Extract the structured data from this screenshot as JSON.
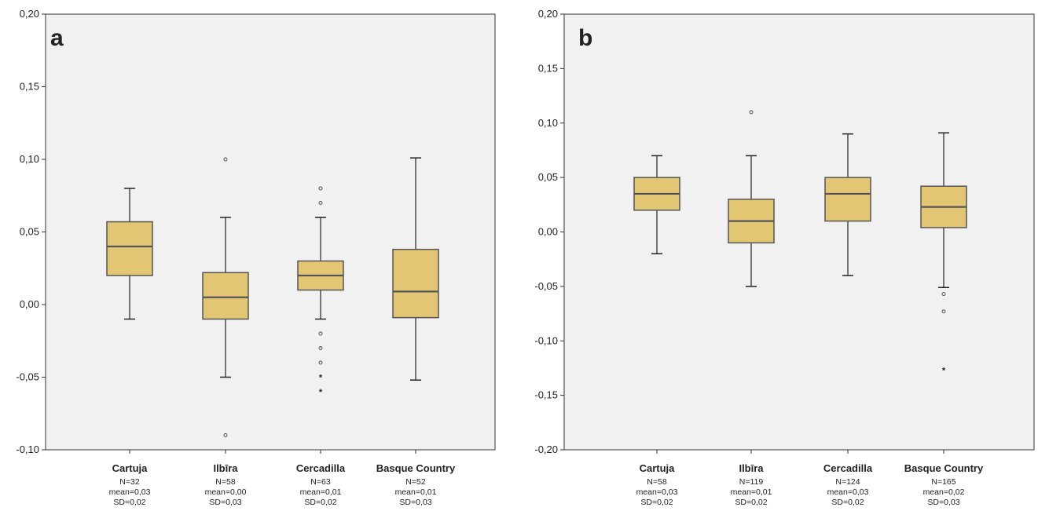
{
  "chart_data": [
    {
      "type": "boxplot",
      "panel_label": "a",
      "ylim": [
        -0.1,
        0.2
      ],
      "yticks": [
        {
          "value": -0.1,
          "label": "-0,10"
        },
        {
          "value": -0.05,
          "label": "-0,05"
        },
        {
          "value": 0.0,
          "label": "0,00"
        },
        {
          "value": 0.05,
          "label": "0,05"
        },
        {
          "value": 0.1,
          "label": "0,10"
        },
        {
          "value": 0.15,
          "label": "0,15"
        },
        {
          "value": 0.2,
          "label": "0,20"
        }
      ],
      "box_color": "#e2c674",
      "background_color": "#f1f1f1",
      "boxes": [
        {
          "category": "Cartuja",
          "n_label": "N=32",
          "mean_label": "mean=0,03",
          "sd_label": "SD=0,02",
          "whisker_low": -0.01,
          "q1": 0.02,
          "median": 0.04,
          "q3": 0.057,
          "whisker_high": 0.08,
          "outliers": [],
          "extremes": []
        },
        {
          "category": "Ilbīra",
          "n_label": "N=58",
          "mean_label": "mean=0,00",
          "sd_label": "SD=0,03",
          "whisker_low": -0.05,
          "q1": -0.01,
          "median": 0.005,
          "q3": 0.022,
          "whisker_high": 0.06,
          "outliers": [
            0.1,
            -0.09
          ],
          "extremes": []
        },
        {
          "category": "Cercadilla",
          "n_label": "N=63",
          "mean_label": "mean=0,01",
          "sd_label": "SD=0,02",
          "whisker_low": -0.01,
          "q1": 0.01,
          "median": 0.02,
          "q3": 0.03,
          "whisker_high": 0.06,
          "outliers": [
            0.08,
            0.07,
            -0.02,
            -0.03,
            -0.04
          ],
          "extremes": [
            -0.05,
            -0.06
          ]
        },
        {
          "category": "Basque Country",
          "n_label": "N=52",
          "mean_label": "mean=0,01",
          "sd_label": "SD=0,03",
          "whisker_low": -0.052,
          "q1": -0.009,
          "median": 0.009,
          "q3": 0.038,
          "whisker_high": 0.101,
          "outliers": [],
          "extremes": []
        }
      ]
    },
    {
      "type": "boxplot",
      "panel_label": "b",
      "ylim": [
        -0.2,
        0.2
      ],
      "yticks": [
        {
          "value": -0.2,
          "label": "-0,20"
        },
        {
          "value": -0.15,
          "label": "-0,15"
        },
        {
          "value": -0.1,
          "label": "-0,10"
        },
        {
          "value": -0.05,
          "label": "-0,05"
        },
        {
          "value": 0.0,
          "label": "0,00"
        },
        {
          "value": 0.05,
          "label": "0,05"
        },
        {
          "value": 0.1,
          "label": "0,10"
        },
        {
          "value": 0.15,
          "label": "0,15"
        },
        {
          "value": 0.2,
          "label": "0,20"
        }
      ],
      "box_color": "#e2c674",
      "background_color": "#f1f1f1",
      "boxes": [
        {
          "category": "Cartuja",
          "n_label": "N=58",
          "mean_label": "mean=0,03",
          "sd_label": "SD=0,02",
          "whisker_low": -0.02,
          "q1": 0.02,
          "median": 0.035,
          "q3": 0.05,
          "whisker_high": 0.07,
          "outliers": [],
          "extremes": []
        },
        {
          "category": "Ilbīra",
          "n_label": "N=119",
          "mean_label": "mean=0,01",
          "sd_label": "SD=0,02",
          "whisker_low": -0.05,
          "q1": -0.01,
          "median": 0.01,
          "q3": 0.03,
          "whisker_high": 0.07,
          "outliers": [
            0.11
          ],
          "extremes": []
        },
        {
          "category": "Cercadilla",
          "n_label": "N=124",
          "mean_label": "mean=0,03",
          "sd_label": "SD=0,02",
          "whisker_low": -0.04,
          "q1": 0.01,
          "median": 0.035,
          "q3": 0.05,
          "whisker_high": 0.09,
          "outliers": [],
          "extremes": []
        },
        {
          "category": "Basque Country",
          "n_label": "N=165",
          "mean_label": "mean=0,02",
          "sd_label": "SD=0,03",
          "whisker_low": -0.051,
          "q1": 0.004,
          "median": 0.023,
          "q3": 0.042,
          "whisker_high": 0.091,
          "outliers": [
            -0.057,
            -0.073
          ],
          "extremes": [
            -0.127
          ]
        }
      ]
    }
  ]
}
